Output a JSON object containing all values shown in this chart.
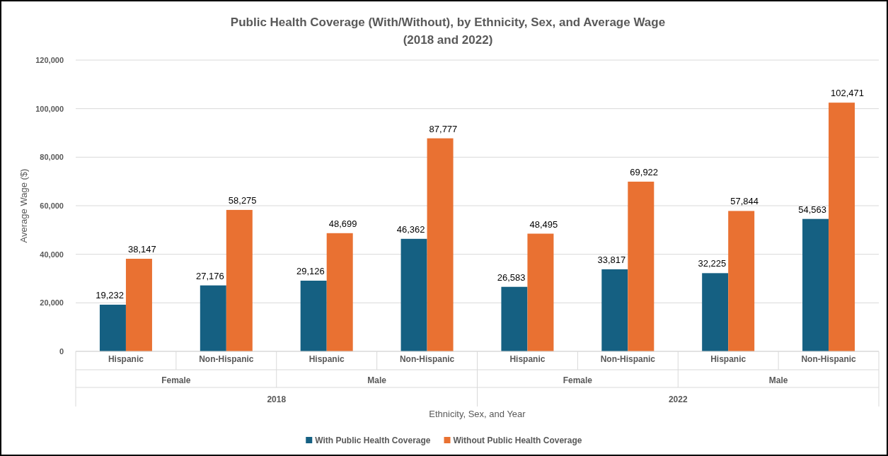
{
  "chart_data": {
    "type": "bar",
    "title": "Public Health Coverage (With/Without), by Ethnicity, Sex, and Average Wage\n(2018 and 2022)",
    "xlabel": "Ethnicity, Sex, and Year",
    "ylabel": "Average Wage ($)",
    "categories": [
      "Hispanic",
      "Non-Hispanic",
      "Hispanic",
      "Non-Hispanic",
      "Hispanic",
      "Non-Hispanic",
      "Hispanic",
      "Non-Hispanic"
    ],
    "series": [
      {
        "name": "With Public Health Coverage",
        "color": "#156082",
        "values": [
          19232,
          27176,
          29126,
          46362,
          26583,
          33817,
          32225,
          54563
        ],
        "value_labels": [
          "19,232",
          "27,176",
          "29,126",
          "46,362",
          "26,583",
          "33,817",
          "32,225",
          "54,563"
        ]
      },
      {
        "name": "Without Public Health Coverage",
        "color": "#e97132",
        "values": [
          38147,
          58275,
          48699,
          87777,
          48495,
          69922,
          57844,
          102471
        ],
        "value_labels": [
          "38,147",
          "58,275",
          "48,699",
          "87,777",
          "48,495",
          "69,922",
          "57,844",
          "102,471"
        ]
      }
    ],
    "annotations": [
      "Female",
      "Male",
      "Female",
      "Male",
      "2018",
      "2022"
    ],
    "ylim": [
      0,
      120000
    ],
    "yticks": [
      0,
      {
        "value": 20000,
        "label": "20,000"
      },
      {
        "value": 40000,
        "label": "40,000"
      },
      {
        "value": 60000,
        "label": "60,000"
      },
      {
        "value": 80000,
        "label": "80,000"
      },
      {
        "value": 100000,
        "label": "100,000"
      },
      {
        "value": 120000,
        "label": "120,000"
      }
    ],
    "grid": "y",
    "legend": "bottom"
  }
}
